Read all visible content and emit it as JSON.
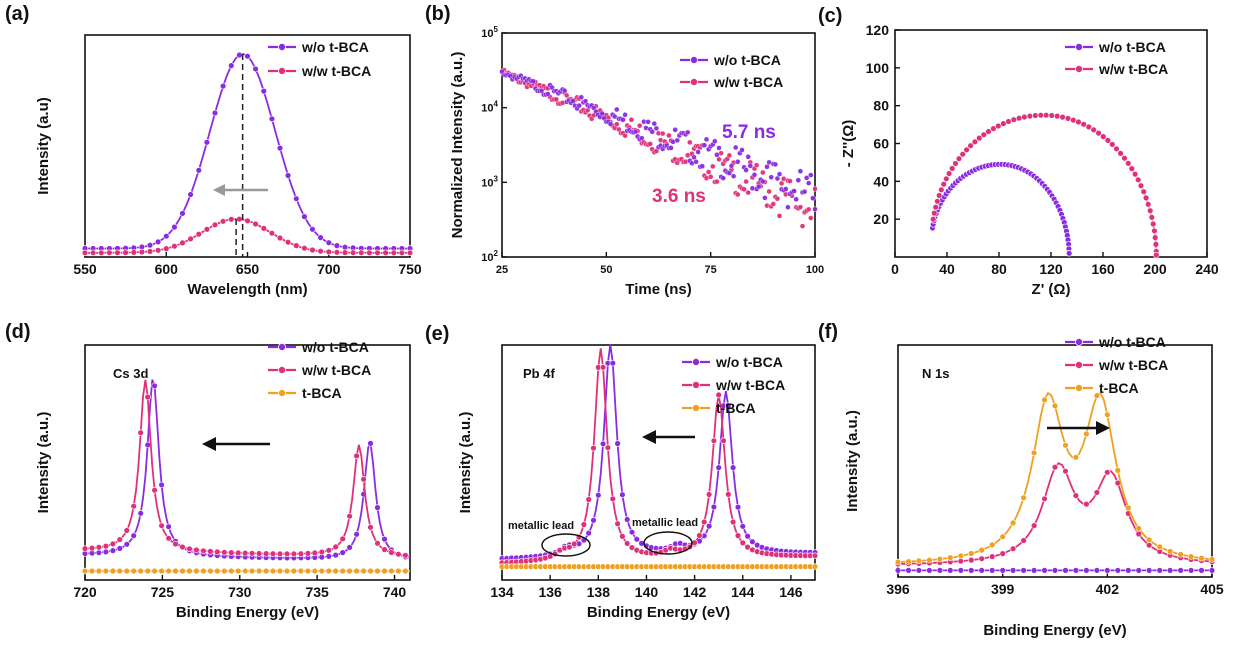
{
  "colors": {
    "wo": "#8a2be2",
    "ww": "#e0307a",
    "tbca": "#f0a020",
    "arrow_gray": "#999999",
    "black": "#111111"
  },
  "corner_text": "",
  "chart_data": [
    {
      "id": "a",
      "panel_label": "(a)",
      "type": "line",
      "xlabel": "Wavelength (nm)",
      "ylabel": "Intensity (a.u)",
      "xlim": [
        550,
        750
      ],
      "ylim": [
        0,
        1.05
      ],
      "xticks": [
        "550",
        "600",
        "650",
        "700",
        "750"
      ],
      "yticks": [],
      "series": [
        {
          "name": "w/o t-BCA",
          "color_key": "wo",
          "peak": 647,
          "width": 20,
          "amp": 0.92,
          "base": 0.04
        },
        {
          "name": "w/w t-BCA",
          "color_key": "ww",
          "peak": 643,
          "width": 21,
          "amp": 0.16,
          "base": 0.02
        }
      ],
      "legend_position": "top-right",
      "annotations": [
        "dashed lines at peaks 643 nm and 647 nm",
        "gray arrow pointing left"
      ]
    },
    {
      "id": "b",
      "panel_label": "(b)",
      "type": "scatter",
      "xlabel": "Time (ns)",
      "ylabel": "Normalized Intensity (a.u.)",
      "xlim": [
        25,
        100
      ],
      "ylim": [
        100,
        100000
      ],
      "yscale": "log",
      "xticks": [
        "25",
        "50",
        "75",
        "100"
      ],
      "yticks": [
        {
          "b": "10",
          "e": "2"
        },
        {
          "b": "10",
          "e": "3"
        },
        {
          "b": "10",
          "e": "4"
        },
        {
          "b": "10",
          "e": "5"
        }
      ],
      "series": [
        {
          "name": "w/o t-BCA",
          "color_key": "wo",
          "start": 30000,
          "end": 620
        },
        {
          "name": "w/w t-BCA",
          "color_key": "ww",
          "start": 30000,
          "end": 420
        }
      ],
      "lifetimes": [
        {
          "text": "5.7 ns",
          "color_key": "wo"
        },
        {
          "text": "3.6 ns",
          "color_key": "ww"
        }
      ],
      "legend_position": "top-right"
    },
    {
      "id": "c",
      "panel_label": "(c)",
      "type": "scatter",
      "xlabel": "Z' (Ω)",
      "ylabel": "- Z''(Ω)",
      "xlim": [
        0,
        240
      ],
      "ylim": [
        0,
        120
      ],
      "xticks": [
        "0",
        "40",
        "80",
        "120",
        "160",
        "200",
        "240"
      ],
      "yticks": [
        "20",
        "40",
        "60",
        "80",
        "100",
        "120"
      ],
      "series": [
        {
          "name": "w/o t-BCA",
          "color_key": "wo",
          "x_start": 28,
          "x_end": 134,
          "z_peak": 49
        },
        {
          "name": "w/w t-BCA",
          "color_key": "ww",
          "x_start": 28,
          "x_end": 201,
          "z_peak": 75
        }
      ],
      "legend_position": "top-right"
    },
    {
      "id": "d",
      "panel_label": "(d)",
      "type": "line",
      "inner_label": "Cs 3d",
      "xlabel": "Binding Energy (eV)",
      "ylabel": "Intensity (a.u.)",
      "xlim": [
        720,
        741
      ],
      "ylim": [
        0,
        1.05
      ],
      "xticks": [
        "720",
        "725",
        "730",
        "735",
        "740"
      ],
      "yticks": [],
      "series": [
        {
          "name": "w/o t-BCA",
          "color_key": "wo",
          "peaks": [
            [
              724.4,
              0.8
            ],
            [
              738.4,
              0.53
            ]
          ]
        },
        {
          "name": "w/w t-BCA",
          "color_key": "ww",
          "peaks": [
            [
              723.9,
              0.77
            ],
            [
              737.7,
              0.5
            ]
          ]
        },
        {
          "name": "t-BCA",
          "color_key": "tbca",
          "peaks": []
        }
      ],
      "legend_position": "top-right",
      "annotations": [
        "black arrow pointing left"
      ]
    },
    {
      "id": "e",
      "panel_label": "(e)",
      "type": "line",
      "inner_label": "Pb 4f",
      "xlabel": "Binding Energy (eV)",
      "ylabel": "Intensity (a.u.)",
      "xlim": [
        134,
        147
      ],
      "ylim": [
        0,
        1.05
      ],
      "xticks": [
        "134",
        "136",
        "138",
        "140",
        "142",
        "144",
        "146"
      ],
      "yticks": [],
      "series": [
        {
          "name": "w/o t-BCA",
          "color_key": "wo",
          "peaks": [
            [
              138.5,
              0.95
            ],
            [
              143.3,
              0.73
            ],
            [
              136.7,
              0.03
            ],
            [
              141.3,
              0.03
            ]
          ]
        },
        {
          "name": "w/w t-BCA",
          "color_key": "ww",
          "peaks": [
            [
              138.1,
              0.95
            ],
            [
              143.0,
              0.73
            ],
            [
              136.5,
              0.025
            ],
            [
              141.0,
              0.025
            ]
          ]
        },
        {
          "name": "t-BCA",
          "color_key": "tbca",
          "peaks": []
        }
      ],
      "legend_position": "top-right",
      "annotations": [
        "metallic lead",
        "metallic lead"
      ],
      "notes": [
        "black arrow pointing left",
        "ellipses circling metallic lead shoulders"
      ]
    },
    {
      "id": "f",
      "panel_label": "(f)",
      "type": "line",
      "inner_label": "N 1s",
      "xlabel": "Binding Energy (eV)",
      "ylabel": "Intensity (a.u.)",
      "xlim": [
        396,
        405
      ],
      "ylim": [
        0,
        1.05
      ],
      "xticks": [
        "396",
        "399",
        "402",
        "405"
      ],
      "yticks": [],
      "series": [
        {
          "name": "w/o t-BCA",
          "color_key": "wo",
          "peaks": []
        },
        {
          "name": "w/w t-BCA",
          "color_key": "ww",
          "peaks": [
            [
              400.6,
              0.42
            ],
            [
              402.1,
              0.38
            ]
          ]
        },
        {
          "name": "t-BCA",
          "color_key": "tbca",
          "peaks": [
            [
              400.3,
              0.7
            ],
            [
              401.8,
              0.7
            ]
          ]
        }
      ],
      "legend_position": "top-right",
      "annotations": [
        "black arrow pointing right"
      ]
    }
  ]
}
